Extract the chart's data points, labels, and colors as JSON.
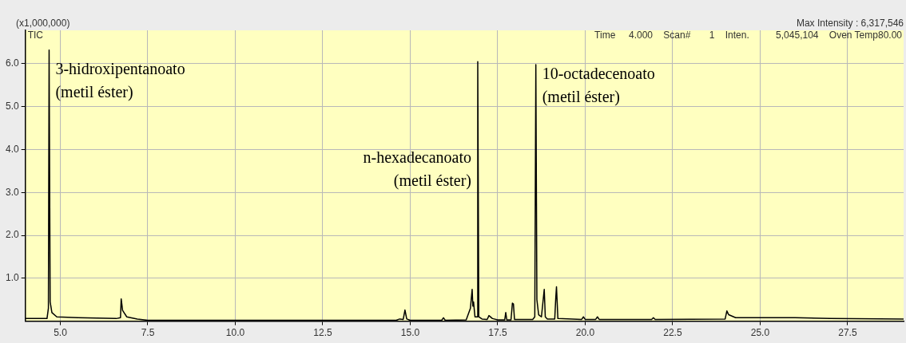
{
  "chart_data": {
    "type": "line",
    "ylabel": "(x1,000,000)",
    "annotations": [
      "TIC",
      "Max Intensity : 6,317,546",
      "Time     4.000    Scan#       1    Inten.          5,045,104    Oven Temp80.00",
      {
        "text": "3-hidroxipentanoato\n(metil éster)",
        "x": 4.68,
        "y": 6.05
      },
      {
        "text": "n-hexadecanoato\n(metil éster)",
        "x": 16.93,
        "y": 3.98
      },
      {
        "text": "10-octadecenoato\n(metil éster)",
        "x": 18.59,
        "y": 5.93
      }
    ],
    "series": [
      {
        "color": "#000000",
        "x": [
          4.0,
          4.62,
          4.66,
          4.68,
          4.71,
          4.76,
          4.9,
          5.5,
          6.6,
          6.72,
          6.74,
          6.78,
          6.9,
          7.2,
          7.4,
          7.5,
          14.6,
          14.7,
          14.8,
          14.85,
          14.9,
          15.0,
          15.9,
          15.95,
          16.0,
          16.6,
          16.72,
          16.77,
          16.79,
          16.81,
          16.85,
          16.91,
          16.93,
          16.96,
          17.05,
          17.2,
          17.25,
          17.35,
          17.5,
          17.7,
          17.73,
          17.76,
          17.88,
          17.92,
          17.95,
          17.98,
          18.5,
          18.56,
          18.59,
          18.62,
          18.67,
          18.75,
          18.83,
          18.86,
          18.92,
          19.13,
          19.16,
          19.18,
          19.22,
          19.9,
          19.95,
          20.0,
          20.3,
          20.35,
          20.4,
          21.9,
          21.95,
          22.0,
          24.0,
          24.05,
          24.1,
          24.3,
          26.0,
          27.0,
          29.1
        ],
        "values": [
          0.06,
          0.06,
          0.3,
          6.32,
          0.45,
          0.2,
          0.1,
          0.08,
          0.06,
          0.08,
          0.52,
          0.25,
          0.1,
          0.05,
          0.03,
          0.02,
          0.02,
          0.05,
          0.04,
          0.26,
          0.05,
          0.02,
          0.02,
          0.08,
          0.02,
          0.03,
          0.3,
          0.74,
          0.35,
          0.45,
          0.1,
          0.1,
          6.05,
          0.1,
          0.05,
          0.04,
          0.13,
          0.06,
          0.03,
          0.03,
          0.2,
          0.03,
          0.03,
          0.42,
          0.4,
          0.04,
          0.04,
          0.1,
          5.98,
          0.5,
          0.15,
          0.1,
          0.74,
          0.1,
          0.05,
          0.05,
          0.55,
          0.8,
          0.06,
          0.04,
          0.1,
          0.04,
          0.04,
          0.1,
          0.04,
          0.04,
          0.08,
          0.04,
          0.05,
          0.24,
          0.15,
          0.08,
          0.08,
          0.06,
          0.05
        ]
      }
    ],
    "xlim": [
      4.0,
      29.1
    ],
    "xticks": [
      {
        "value": 5,
        "label": "5.0"
      },
      {
        "value": 7.5,
        "label": "7.5"
      },
      {
        "value": 10,
        "label": "10.0"
      },
      {
        "value": 12.5,
        "label": "12.5"
      },
      {
        "value": 15,
        "label": "15.0"
      },
      {
        "value": 17.5,
        "label": "17.5"
      },
      {
        "value": 20,
        "label": "20.0"
      },
      {
        "value": 22.5,
        "label": "22.5"
      },
      {
        "value": 25,
        "label": "25.0"
      },
      {
        "value": 27.5,
        "label": "27.5"
      }
    ],
    "ylim": [
      0,
      6.78
    ],
    "yticks": [
      {
        "value": 1,
        "label": "1.0"
      },
      {
        "value": 2,
        "label": "2.0"
      },
      {
        "value": 3,
        "label": "3.0"
      },
      {
        "value": 4,
        "label": "4.0"
      },
      {
        "value": 5,
        "label": "5.0"
      },
      {
        "value": 6,
        "label": "6.0"
      }
    ],
    "grid": true,
    "legend": false,
    "marker": "none",
    "line_style": "solid"
  }
}
